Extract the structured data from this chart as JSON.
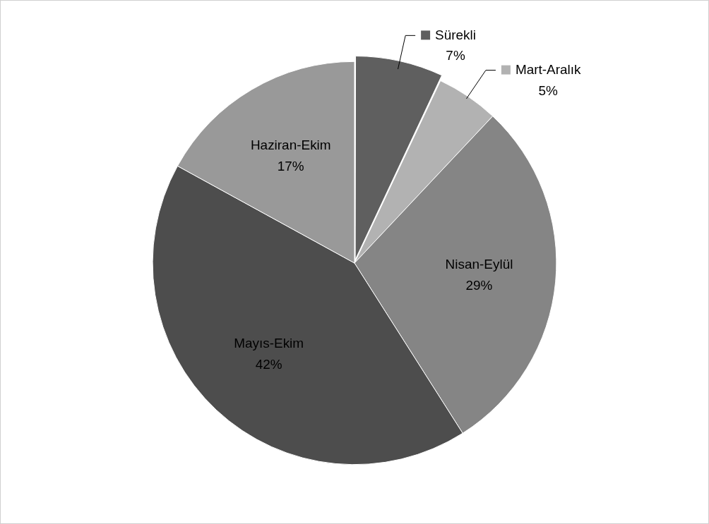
{
  "chart_data": {
    "type": "pie",
    "categories": [
      "Sürekli",
      "Mart-Aralık",
      "Nisan-Eylül",
      "Mayıs-Ekim",
      "Haziran-Ekim"
    ],
    "values": [
      7,
      5,
      29,
      42,
      17
    ],
    "colors": [
      "#5f5f5f",
      "#b2b2b2",
      "#858585",
      "#4d4d4d",
      "#999999"
    ],
    "value_labels": [
      "7%",
      "5%",
      "29%",
      "42%",
      "17%"
    ],
    "legend": "top right"
  }
}
